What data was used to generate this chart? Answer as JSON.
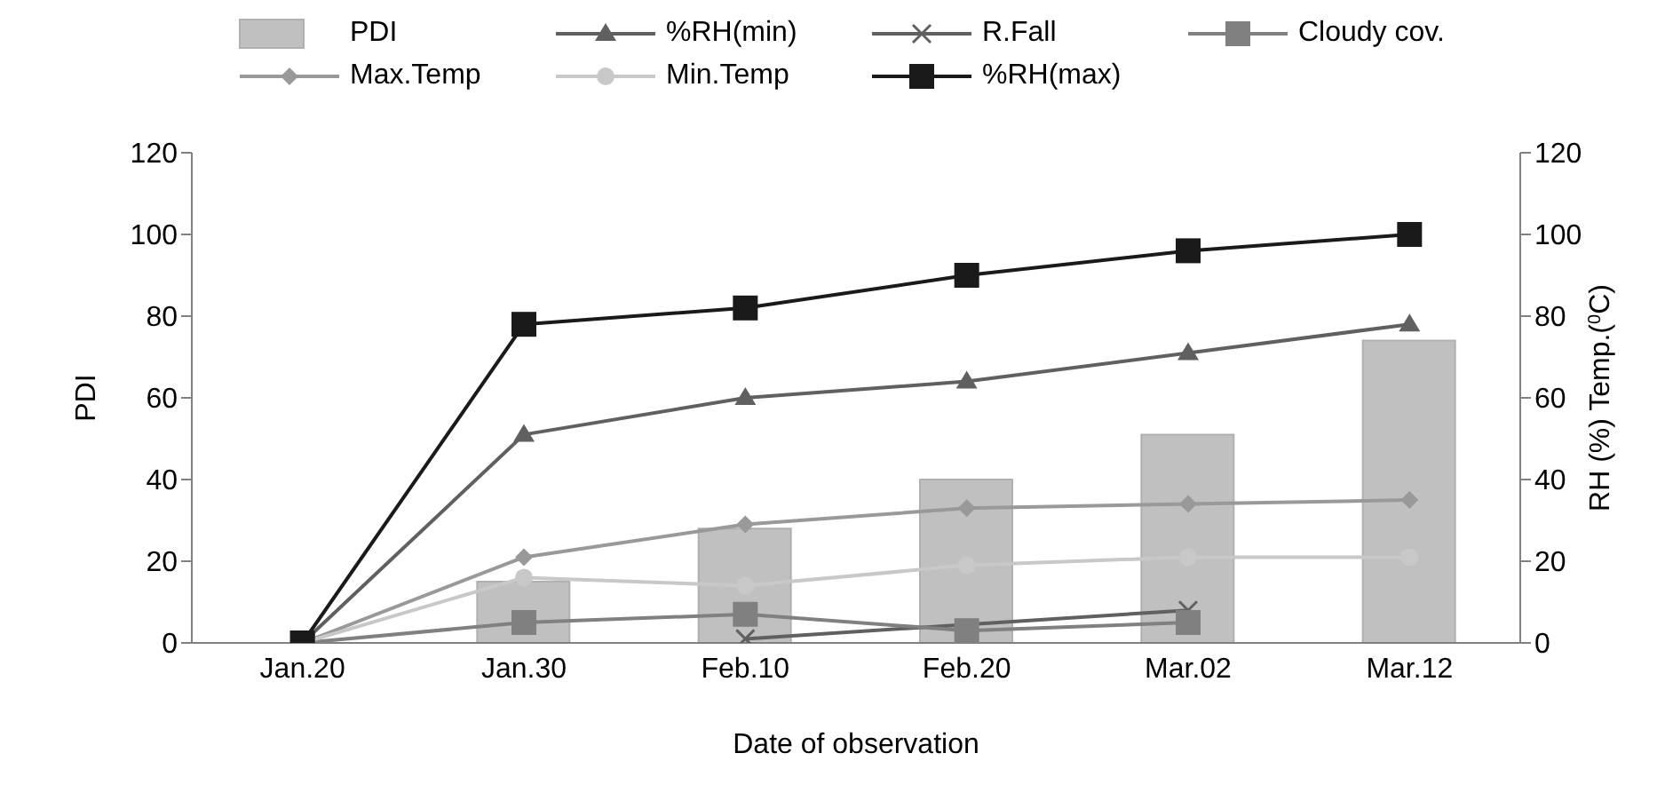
{
  "chart_data": {
    "type": "line",
    "xlabel": "Date of observation",
    "ylabel": "PDI",
    "y2label": "RH (%) Temp.($^{0}$C)",
    "categories": [
      "Jan.20",
      "Jan.30",
      "Feb.10",
      "Feb.20",
      "Mar.02",
      "Mar.12"
    ],
    "ylim": [
      0,
      120
    ],
    "yticks": [
      0,
      20,
      40,
      60,
      80,
      100,
      120
    ],
    "y2lim": [
      0,
      120
    ],
    "y2ticks": [
      0,
      20,
      40,
      60,
      80,
      100,
      120
    ],
    "legend": "top",
    "grid": false,
    "series": [
      {
        "name": "PDI",
        "type": "bar",
        "color": "#c0c0c0",
        "values": [
          0,
          15,
          28,
          40,
          51,
          74
        ]
      },
      {
        "name": "%RH(min)",
        "marker": "triangle",
        "color": "#606060",
        "values": [
          0,
          51,
          60,
          64,
          71,
          78
        ]
      },
      {
        "name": "R.Fall",
        "marker": "cross",
        "color": "#606060",
        "values": [
          null,
          null,
          1,
          null,
          8,
          null
        ]
      },
      {
        "name": "Cloudy cov.",
        "marker": "square",
        "color": "#808080",
        "values": [
          0,
          5,
          7,
          3,
          5,
          null
        ]
      },
      {
        "name": "Max.Temp",
        "marker": "diamond",
        "color": "#999999",
        "values": [
          0,
          21,
          29,
          33,
          34,
          35
        ]
      },
      {
        "name": "Min.Temp",
        "marker": "circle",
        "color": "#c8c8c8",
        "values": [
          0,
          16,
          14,
          19,
          21,
          21
        ]
      },
      {
        "name": "%RH(max)",
        "marker": "square",
        "color": "#1a1a1a",
        "values": [
          0,
          78,
          82,
          90,
          96,
          100
        ]
      }
    ]
  }
}
